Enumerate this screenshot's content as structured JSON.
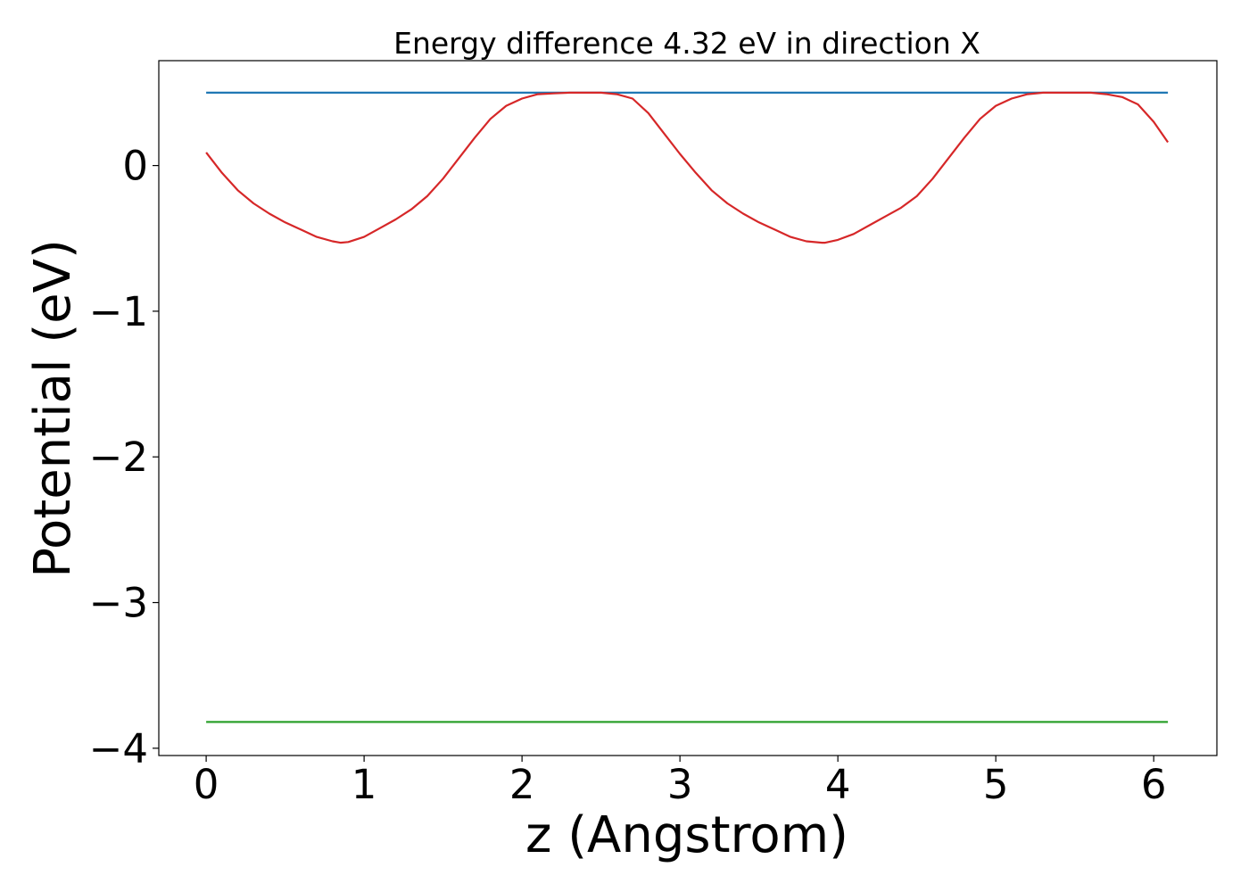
{
  "chart_data": {
    "type": "line",
    "title": "Energy difference 4.32 eV in direction X",
    "xlabel": "z (Angstrom)",
    "ylabel": "Potential (eV)",
    "xlim": [
      -0.3,
      6.4
    ],
    "ylim": [
      -4.05,
      0.72
    ],
    "xticks": [
      0,
      1,
      2,
      3,
      4,
      5,
      6
    ],
    "xtick_labels": [
      "0",
      "1",
      "2",
      "3",
      "4",
      "5",
      "6"
    ],
    "yticks": [
      0,
      -1,
      -2,
      -3,
      -4
    ],
    "ytick_labels": [
      "0",
      "−1",
      "−2",
      "−3",
      "−4"
    ],
    "grid": false,
    "legend": "none",
    "series": [
      {
        "color": "#1f77b4",
        "x": [
          0,
          6.09
        ],
        "y": [
          0.5,
          0.5
        ]
      },
      {
        "color": "#2ca02c",
        "x": [
          0,
          6.09
        ],
        "y": [
          -3.82,
          -3.82
        ]
      },
      {
        "color": "#d62728",
        "x": [
          0,
          0.1,
          0.2,
          0.3,
          0.4,
          0.5,
          0.6,
          0.7,
          0.8,
          0.85,
          0.9,
          1.0,
          1.1,
          1.2,
          1.3,
          1.4,
          1.5,
          1.6,
          1.7,
          1.8,
          1.9,
          2.0,
          2.1,
          2.2,
          2.3,
          2.4,
          2.5,
          2.6,
          2.7,
          2.8,
          2.9,
          3.0,
          3.1,
          3.2,
          3.3,
          3.4,
          3.5,
          3.6,
          3.7,
          3.8,
          3.9,
          3.92,
          4.0,
          4.1,
          4.2,
          4.3,
          4.4,
          4.5,
          4.6,
          4.7,
          4.8,
          4.9,
          5.0,
          5.1,
          5.2,
          5.3,
          5.4,
          5.5,
          5.6,
          5.7,
          5.8,
          5.9,
          6.0,
          6.09
        ],
        "y": [
          0.09,
          -0.05,
          -0.17,
          -0.26,
          -0.33,
          -0.39,
          -0.44,
          -0.49,
          -0.52,
          -0.53,
          -0.525,
          -0.49,
          -0.43,
          -0.37,
          -0.3,
          -0.21,
          -0.09,
          0.05,
          0.19,
          0.32,
          0.41,
          0.46,
          0.49,
          0.495,
          0.5,
          0.5,
          0.5,
          0.49,
          0.46,
          0.36,
          0.22,
          0.08,
          -0.05,
          -0.17,
          -0.26,
          -0.33,
          -0.39,
          -0.44,
          -0.49,
          -0.52,
          -0.53,
          -0.53,
          -0.51,
          -0.47,
          -0.41,
          -0.35,
          -0.29,
          -0.21,
          -0.09,
          0.05,
          0.19,
          0.32,
          0.41,
          0.46,
          0.49,
          0.5,
          0.5,
          0.5,
          0.5,
          0.49,
          0.47,
          0.42,
          0.3,
          0.16
        ]
      }
    ]
  }
}
